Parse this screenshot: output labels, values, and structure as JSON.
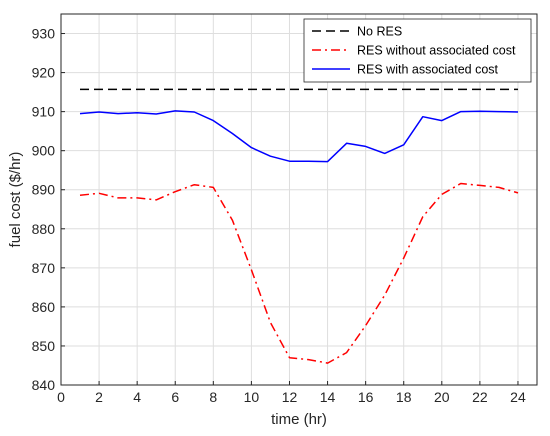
{
  "chart_data": {
    "type": "line",
    "title": "",
    "xlabel": "time (hr)",
    "ylabel": "fuel cost ($/hr)",
    "xlim": [
      0,
      25
    ],
    "ylim": [
      840,
      935
    ],
    "xticks": [
      0,
      2,
      4,
      6,
      8,
      10,
      12,
      14,
      16,
      18,
      20,
      22,
      24
    ],
    "yticks": [
      840,
      850,
      860,
      870,
      880,
      890,
      900,
      910,
      920,
      930
    ],
    "grid": true,
    "legend_position": "top-right",
    "x": [
      1,
      2,
      3,
      4,
      5,
      6,
      7,
      8,
      9,
      10,
      11,
      12,
      13,
      14,
      15,
      16,
      17,
      18,
      19,
      20,
      21,
      22,
      23,
      24
    ],
    "series": [
      {
        "name": "No RES",
        "color": "#000000",
        "dash": "dashed",
        "values": [
          915.7,
          915.7,
          915.7,
          915.7,
          915.7,
          915.7,
          915.7,
          915.7,
          915.7,
          915.7,
          915.7,
          915.7,
          915.7,
          915.7,
          915.7,
          915.7,
          915.7,
          915.7,
          915.7,
          915.7,
          915.7,
          915.7,
          915.7,
          915.7
        ]
      },
      {
        "name": "RES without associated cost",
        "color": "#ff0000",
        "dash": "dashdot",
        "values": [
          888.6,
          889.1,
          887.9,
          887.9,
          887.4,
          889.5,
          891.3,
          890.6,
          882.2,
          869.5,
          856.0,
          847.0,
          846.5,
          845.6,
          848.3,
          855.2,
          863.0,
          872.5,
          883.1,
          888.8,
          891.6,
          891.1,
          890.6,
          889.2
        ]
      },
      {
        "name": "RES with associated cost",
        "color": "#0000ff",
        "dash": "solid",
        "values": [
          909.5,
          909.9,
          909.5,
          909.7,
          909.4,
          910.2,
          909.9,
          907.7,
          904.4,
          900.8,
          898.6,
          897.3,
          897.3,
          897.2,
          901.9,
          901.1,
          899.3,
          901.5,
          908.7,
          907.7,
          910.0,
          910.1,
          910.0,
          909.9
        ]
      }
    ]
  }
}
